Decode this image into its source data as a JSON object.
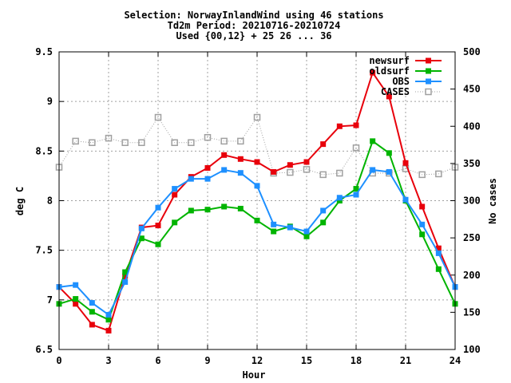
{
  "chart_data": {
    "type": "line",
    "title_lines": [
      "Selection: NorwayInlandWind using    46 stations",
      "Td2m   Period: 20210716-20210724",
      "Used {00,12} + 25 26 ... 36"
    ],
    "xlabel": "Hour",
    "ylabel": "deg C",
    "y2label": "No cases",
    "xlim": [
      0,
      24
    ],
    "ylim": [
      6.5,
      9.5
    ],
    "y2lim": [
      100,
      500
    ],
    "xticks": [
      "0",
      "3",
      "6",
      "9",
      "12",
      "15",
      "18",
      "21",
      "24"
    ],
    "yticks": [
      "6.5",
      "7",
      "7.5",
      "8",
      "8.5",
      "9",
      "9.5"
    ],
    "y2ticks": [
      "100",
      "150",
      "200",
      "250",
      "300",
      "350",
      "400",
      "450",
      "500"
    ],
    "grid": true,
    "legend_position": "top-right",
    "x": [
      0,
      1,
      2,
      3,
      4,
      5,
      6,
      7,
      8,
      9,
      10,
      11,
      12,
      13,
      14,
      15,
      16,
      17,
      18,
      19,
      20,
      21,
      22,
      23,
      24
    ],
    "series": [
      {
        "name": "newsurf",
        "color": "#e8000b",
        "marker": "filled-square",
        "axis": "y",
        "values": [
          7.13,
          6.96,
          6.75,
          6.69,
          7.24,
          7.73,
          7.75,
          8.06,
          8.24,
          8.33,
          8.46,
          8.42,
          8.39,
          8.29,
          8.36,
          8.39,
          8.57,
          8.75,
          8.76,
          9.29,
          9.05,
          8.38,
          7.94,
          7.52,
          7.13
        ]
      },
      {
        "name": "oldsurf",
        "color": "#00b400",
        "marker": "filled-square",
        "axis": "y",
        "values": [
          6.96,
          7.01,
          6.88,
          6.8,
          7.28,
          7.62,
          7.56,
          7.78,
          7.9,
          7.91,
          7.94,
          7.92,
          7.8,
          7.69,
          7.74,
          7.64,
          7.78,
          8.0,
          8.12,
          8.6,
          8.48,
          8.0,
          7.66,
          7.31,
          6.96
        ]
      },
      {
        "name": "OBS",
        "color": "#1e90ff",
        "marker": "filled-square",
        "axis": "y",
        "values": [
          7.13,
          7.15,
          6.97,
          6.85,
          7.18,
          7.72,
          7.93,
          8.12,
          8.22,
          8.22,
          8.31,
          8.28,
          8.15,
          7.76,
          7.73,
          7.69,
          7.9,
          8.03,
          8.06,
          8.31,
          8.29,
          8.01,
          7.76,
          7.47,
          7.13
        ]
      },
      {
        "name": "CASES",
        "color": "#a0a0a0",
        "marker": "open-square",
        "dashed": true,
        "axis": "y2",
        "values": [
          345,
          380,
          378,
          384,
          378,
          378,
          412,
          378,
          378,
          385,
          380,
          380,
          412,
          337,
          338,
          342,
          335,
          337,
          371,
          337,
          337,
          343,
          335,
          336,
          345
        ]
      }
    ]
  }
}
